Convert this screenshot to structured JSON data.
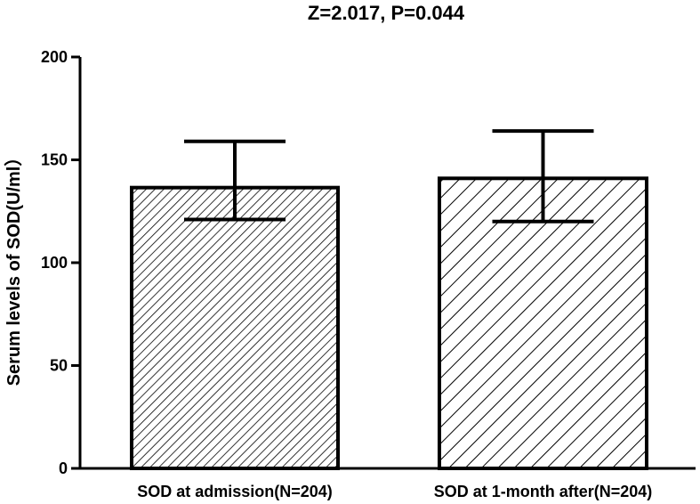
{
  "chart_data": {
    "type": "bar",
    "title": "Z=2.017, P=0.044",
    "xlabel": "",
    "ylabel": "Serum levels of SOD(U/ml）",
    "ylim": [
      0,
      200
    ],
    "yticks": [
      0,
      50,
      100,
      150,
      200
    ],
    "grid": false,
    "categories": [
      "SOD at admission(N=204)",
      "SOD at 1-month after(N=204)"
    ],
    "values": [
      136.5,
      141
    ],
    "error_lower": [
      121,
      120
    ],
    "error_upper": [
      159,
      164
    ],
    "patterns": [
      "dense-diagonal-hatch",
      "sparse-diagonal-hatch"
    ],
    "colors": {
      "bar_fill": "#ffffff",
      "stroke": "#000000"
    }
  }
}
